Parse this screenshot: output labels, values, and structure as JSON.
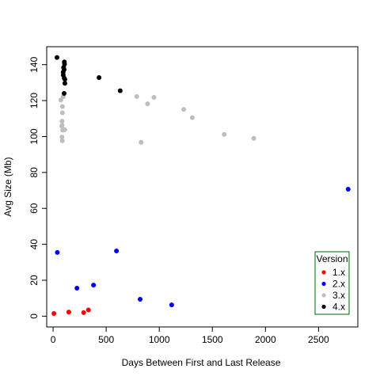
{
  "chart_data": {
    "type": "scatter",
    "title": "",
    "xlabel": "Days Between First and Last Release",
    "ylabel": "Avg Size (Mb)",
    "xlim": [
      -60,
      2870
    ],
    "ylim": [
      -6,
      150
    ],
    "x_ticks": [
      0,
      500,
      1000,
      1500,
      2000,
      2500
    ],
    "y_ticks": [
      0,
      20,
      40,
      60,
      80,
      100,
      120,
      140
    ],
    "grid": false,
    "legend": {
      "title": "Version",
      "placement": "bottom-right"
    },
    "series": [
      {
        "name": "1.x",
        "color": "#ff0000",
        "points": [
          [
            8,
            1.5
          ],
          [
            148,
            2.3
          ],
          [
            288,
            2.0
          ],
          [
            333,
            3.5
          ]
        ]
      },
      {
        "name": "2.x",
        "color": "#0000ff",
        "points": [
          [
            40,
            35.5
          ],
          [
            225,
            15.6
          ],
          [
            381,
            17.3
          ],
          [
            597,
            36.3
          ],
          [
            820,
            9.4
          ],
          [
            1117,
            6.3
          ],
          [
            2779,
            70.7
          ]
        ]
      },
      {
        "name": "3.x",
        "color": "#bebebe",
        "points": [
          [
            73,
            120.3
          ],
          [
            95,
            122.2
          ],
          [
            88,
            116.7
          ],
          [
            88,
            113.2
          ],
          [
            85,
            108.5
          ],
          [
            85,
            106.2
          ],
          [
            82,
            105.7
          ],
          [
            90,
            103.5
          ],
          [
            110,
            103.8
          ],
          [
            84,
            99.7
          ],
          [
            87,
            97.6
          ],
          [
            788,
            122.3
          ],
          [
            950,
            121.8
          ],
          [
            890,
            118.2
          ],
          [
            1230,
            115.1
          ],
          [
            1311,
            110.5
          ],
          [
            829,
            96.8
          ],
          [
            1612,
            101.2
          ],
          [
            1890,
            99.0
          ]
        ]
      },
      {
        "name": "4.x",
        "color": "#000000",
        "points": [
          [
            37,
            144.0
          ],
          [
            106,
            141.5
          ],
          [
            108,
            140.3
          ],
          [
            99,
            138.5
          ],
          [
            104,
            137.3
          ],
          [
            95,
            135.8
          ],
          [
            96,
            134.2
          ],
          [
            105,
            132.5
          ],
          [
            111,
            131.8
          ],
          [
            111,
            129.6
          ],
          [
            104,
            124.0
          ],
          [
            433,
            132.8
          ],
          [
            632,
            125.5
          ]
        ]
      }
    ]
  }
}
